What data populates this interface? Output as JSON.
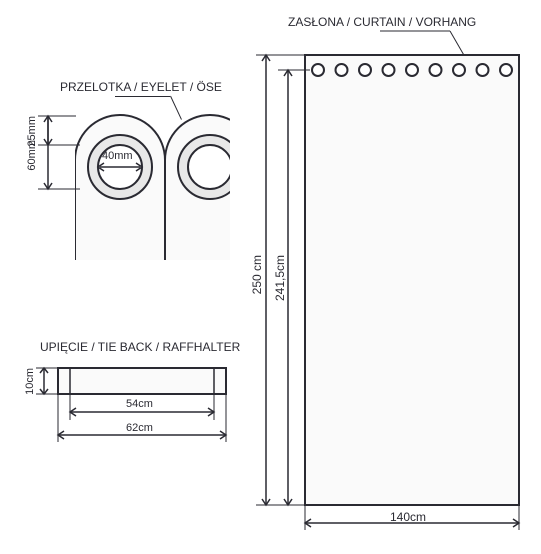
{
  "eyelet": {
    "title": "PRZELOTKA / EYELET / ÖSE",
    "dim_inner": "40mm",
    "dim_top": "25mm",
    "dim_side": "60mm",
    "title_fontsize": 12,
    "dim_fontsize": 11,
    "stroke_color": "#2a2a32",
    "fill_color": "#f0f0f0"
  },
  "tieback": {
    "title": "UPIĘCIE / TIE BACK / RAFFHALTER",
    "dim_height": "10cm",
    "dim_inner_w": "54cm",
    "dim_outer_w": "62cm",
    "title_fontsize": 12,
    "dim_fontsize": 11
  },
  "curtain": {
    "title": "ZASŁONA / CURTAIN / VORHANG",
    "dim_h1": "250 cm",
    "dim_h2": "241,5cm",
    "dim_w": "140cm",
    "title_fontsize": 12,
    "dim_fontsize": 11,
    "eyelet_count": 9
  },
  "colors": {
    "stroke": "#2a2a32",
    "bg": "#ffffff",
    "fill_light": "#fafafa"
  }
}
